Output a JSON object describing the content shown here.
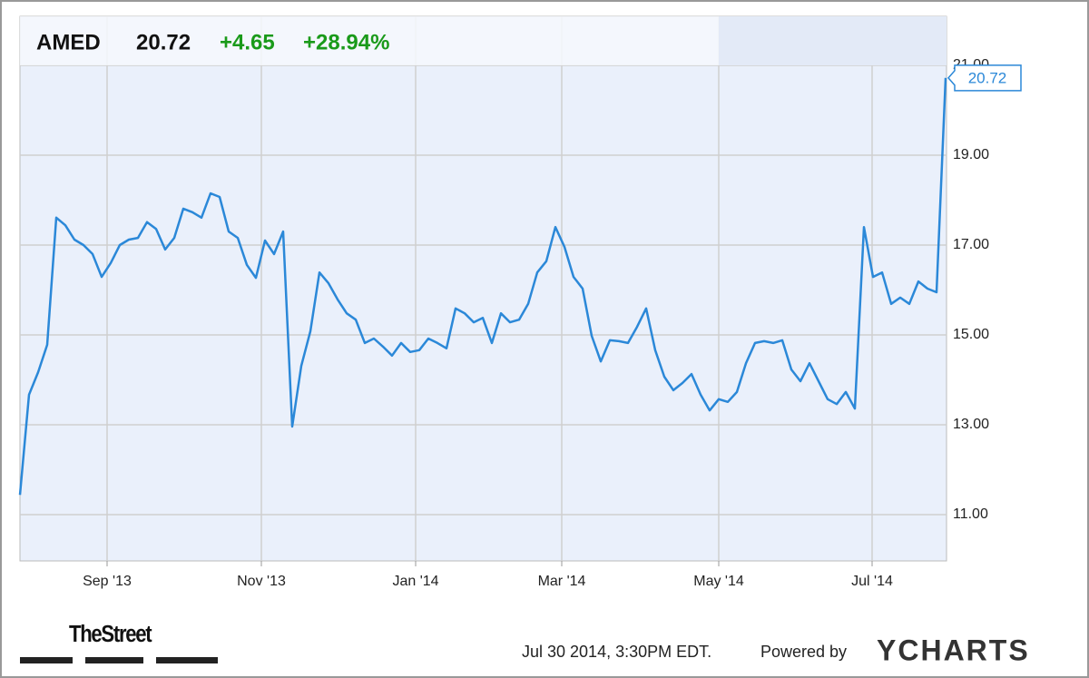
{
  "header": {
    "symbol": "AMED",
    "price": "20.72",
    "change": "+4.65",
    "change_pct": "+28.94%"
  },
  "chart_data": {
    "type": "line",
    "color": "#2b88d8",
    "grid": true,
    "values": [
      11.44,
      13.67,
      14.17,
      14.78,
      17.61,
      17.44,
      17.12,
      17.0,
      16.8,
      16.29,
      16.6,
      17.0,
      17.12,
      17.16,
      17.51,
      17.36,
      16.9,
      17.16,
      17.81,
      17.73,
      17.61,
      18.15,
      18.07,
      17.3,
      17.16,
      16.56,
      16.27,
      17.1,
      16.8,
      17.3,
      12.96,
      14.31,
      15.08,
      16.39,
      16.15,
      15.79,
      15.48,
      15.34,
      14.82,
      14.92,
      14.74,
      14.54,
      14.82,
      14.62,
      14.66,
      14.92,
      14.82,
      14.7,
      15.59,
      15.48,
      15.28,
      15.38,
      14.82,
      15.48,
      15.28,
      15.34,
      15.69,
      16.39,
      16.64,
      17.4,
      16.96,
      16.29,
      16.03,
      14.98,
      14.41,
      14.88,
      14.86,
      14.82,
      15.18,
      15.59,
      14.66,
      14.07,
      13.77,
      13.93,
      14.13,
      13.67,
      13.32,
      13.57,
      13.51,
      13.73,
      14.37,
      14.82,
      14.86,
      14.82,
      14.88,
      14.23,
      13.97,
      14.37,
      13.97,
      13.57,
      13.46,
      13.73,
      13.36,
      17.4,
      16.29,
      16.39,
      15.69,
      15.83,
      15.69,
      16.19,
      16.03,
      15.95,
      20.72
    ],
    "xlim": [
      0,
      102
    ],
    "xticks": [
      {
        "value": 9.6,
        "label": "Sep '13"
      },
      {
        "value": 26.6,
        "label": "Nov '13"
      },
      {
        "value": 43.6,
        "label": "Jan '14"
      },
      {
        "value": 59.7,
        "label": "Mar '14"
      },
      {
        "value": 77.0,
        "label": "May '14"
      },
      {
        "value": 93.9,
        "label": "Jul '14"
      }
    ],
    "ylim": [
      9.97,
      22.09
    ],
    "yticks": [
      {
        "value": 11,
        "label": "11.00"
      },
      {
        "value": 13,
        "label": "13.00"
      },
      {
        "value": 15,
        "label": "15.00"
      },
      {
        "value": 17,
        "label": "17.00"
      },
      {
        "value": 19,
        "label": "19.00"
      },
      {
        "value": 21,
        "label": "21.00"
      }
    ]
  },
  "footer": {
    "source_logo": "TheStreet",
    "timestamp": "Jul 30 2014, 3:30PM EDT.",
    "powered_by": "Powered by",
    "brand": "YCHARTS"
  }
}
